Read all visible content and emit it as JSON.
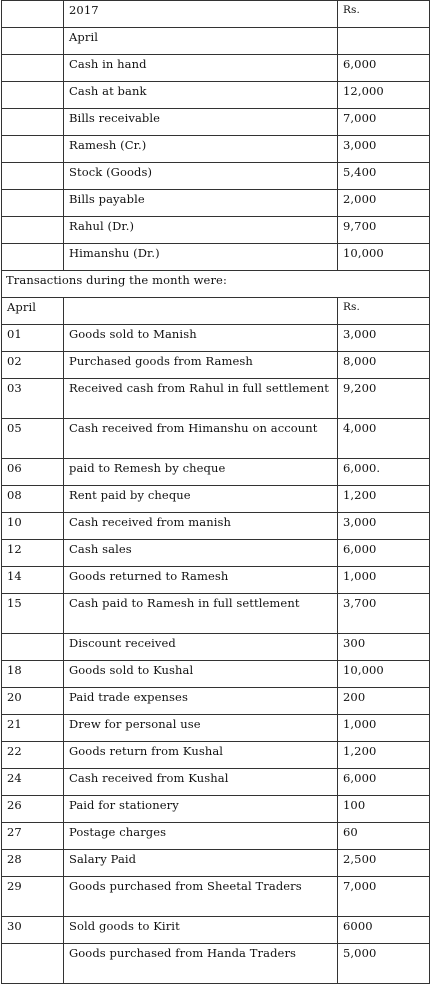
{
  "opening": {
    "year": "2017",
    "currency": "Rs.",
    "month": "April",
    "balances": [
      {
        "item": "Cash in hand",
        "amount": "6,000"
      },
      {
        "item": "Cash at bank",
        "amount": "12,000"
      },
      {
        "item": "Bills receivable",
        "amount": "7,000"
      },
      {
        "item": "Ramesh (Cr.)",
        "amount": "3,000"
      },
      {
        "item": "Stock (Goods)",
        "amount": "5,400"
      },
      {
        "item": "Bills payable",
        "amount": "2,000"
      },
      {
        "item": "Rahul (Dr.)",
        "amount": "9,700"
      },
      {
        "item": "Himanshu (Dr.)",
        "amount": "10,000"
      }
    ]
  },
  "transactions_heading": "Transactions during the month were:",
  "transactions_header": {
    "month": "April",
    "currency": "Rs."
  },
  "transactions": [
    {
      "date": "01",
      "description": "Goods sold to Manish",
      "amount": "3,000"
    },
    {
      "date": "02",
      "description": "Purchased goods from Ramesh",
      "amount": "8,000"
    },
    {
      "date": "03",
      "description": "Received cash from Rahul in full settlement",
      "amount": "9,200"
    },
    {
      "date": "05",
      "description": "Cash received from Himanshu on account",
      "amount": "4,000"
    },
    {
      "date": "06",
      "description": "paid to Remesh by cheque",
      "amount": "6,000."
    },
    {
      "date": "08",
      "description": "Rent paid by cheque",
      "amount": "1,200"
    },
    {
      "date": "10",
      "description": "Cash received from manish",
      "amount": "3,000"
    },
    {
      "date": "12",
      "description": "Cash sales",
      "amount": "6,000"
    },
    {
      "date": "14",
      "description": "Goods returned to Ramesh",
      "amount": "1,000"
    },
    {
      "date": "15",
      "description": "Cash paid to Ramesh in full settlement",
      "amount": "3,700"
    },
    {
      "date": "",
      "description": "Discount received",
      "amount": "300"
    },
    {
      "date": "18",
      "description": "Goods sold to Kushal",
      "amount": "10,000"
    },
    {
      "date": "20",
      "description": "Paid trade expenses",
      "amount": "200"
    },
    {
      "date": "21",
      "description": "Drew for personal use",
      "amount": "1,000"
    },
    {
      "date": "22",
      "description": "Goods return from Kushal",
      "amount": "1,200"
    },
    {
      "date": "24",
      "description": "Cash received from Kushal",
      "amount": "6,000"
    },
    {
      "date": "26",
      "description": "Paid for stationery",
      "amount": "100"
    },
    {
      "date": "27",
      "description": "Postage charges",
      "amount": "60"
    },
    {
      "date": "28",
      "description": "Salary Paid",
      "amount": "2,500"
    },
    {
      "date": "29",
      "description": "Goods purchased from Sheetal Traders",
      "amount": "7,000"
    },
    {
      "date": "30",
      "description": "Sold goods to Kirit",
      "amount": "6000"
    },
    {
      "date": "",
      "description": "Goods purchased from Handa Traders",
      "amount": "5,000"
    }
  ]
}
